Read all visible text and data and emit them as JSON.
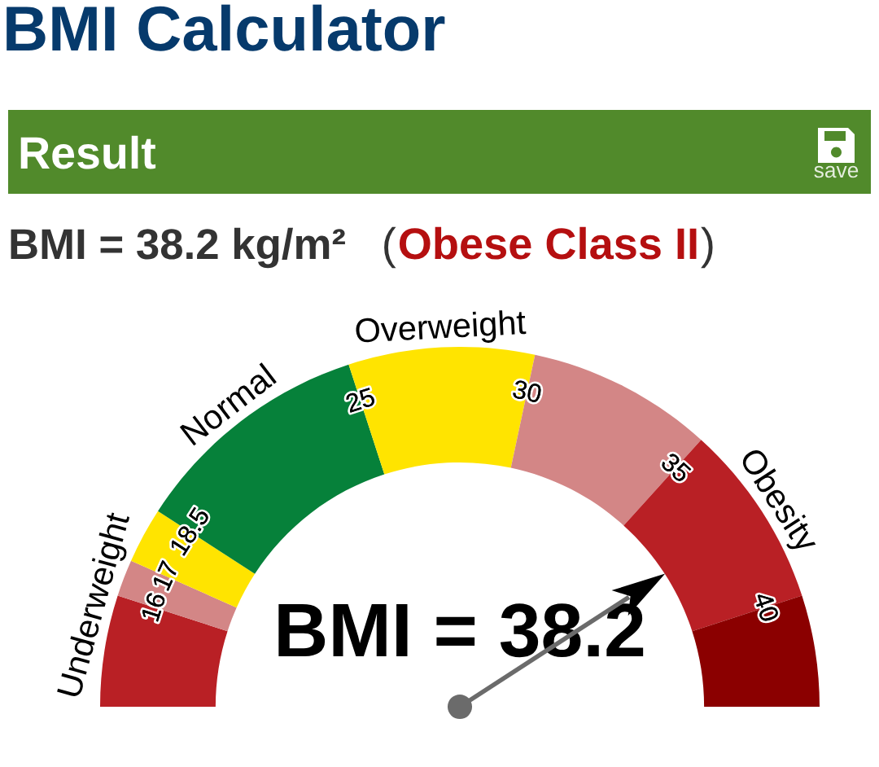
{
  "chart_data": {
    "type": "donut",
    "title": "BMI Calculator",
    "subtitle": "Result",
    "categories": [
      "Underweight",
      null,
      null,
      "Normal",
      "Overweight",
      null,
      "Obesity",
      null
    ],
    "values": [
      10,
      3.3,
      5,
      21.7,
      16.7,
      16.7,
      16.6,
      10
    ],
    "colors": [
      "#b92025",
      "#d38686",
      "#ffe400",
      "#06813a",
      "#ffe400",
      "#d38686",
      "#b92025",
      "#8b0000"
    ],
    "needle": "Obesity",
    "annotations": [
      "save",
      "BMI = 38.2 kg/m²",
      "(Obese Class II)",
      "BMI = 38.2",
      "16",
      "17",
      "18.5",
      "25",
      "30",
      "35",
      "40"
    ]
  }
}
